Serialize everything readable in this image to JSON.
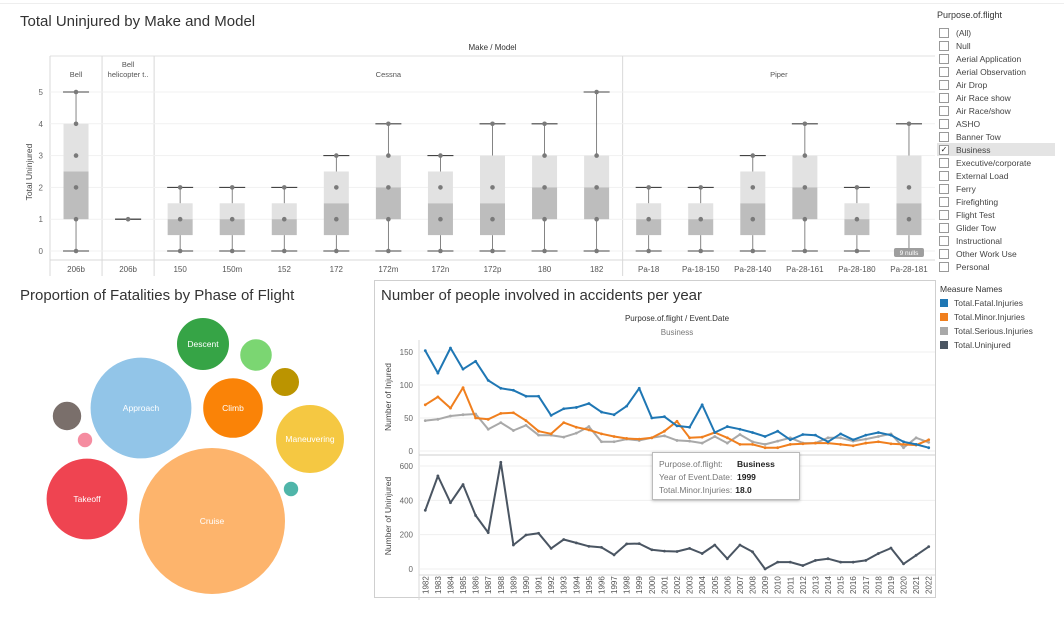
{
  "colors": {
    "fatal": "#1f77b4",
    "minor": "#f07f1e",
    "serious": "#a9a9a9",
    "uninjured": "#4a5562",
    "box_upper": "#e2e2e2",
    "box_lower": "#bdbdbd"
  },
  "boxplot": {
    "title": "Total Uninjured by Make and Model",
    "header": "Make / Model",
    "y_label": "Total Uninjured",
    "nulls_badge": "9 nulls",
    "makes": [
      {
        "label": "Bell",
        "count": 1
      },
      {
        "label": "Bell helicopter t..",
        "count": 1
      },
      {
        "label": "Cessna",
        "count": 9
      },
      {
        "label": "Piper",
        "count": 6
      }
    ]
  },
  "bubble": {
    "title": "Proportion of Fatalities by Phase of Flight",
    "bubbles": [
      {
        "label": "Cruise",
        "color": "#fdb46c",
        "size": 100
      },
      {
        "label": "Approach",
        "color": "#92c5e8",
        "size": 48
      },
      {
        "label": "Takeoff",
        "color": "#ef4451",
        "size": 31
      },
      {
        "label": "Maneuvering",
        "color": "#f5c842",
        "size": 22
      },
      {
        "label": "Climb",
        "color": "#fa8307",
        "size": 17
      },
      {
        "label": "Descent",
        "color": "#36a446",
        "size": 13
      },
      {
        "label": "",
        "color": "#7bd672",
        "size": 4.9
      },
      {
        "label": "",
        "color": "#bb9400",
        "size": 3.9
      },
      {
        "label": "",
        "color": "#7a6f6b",
        "size": 4.0
      },
      {
        "label": "",
        "color": "#f58ca0",
        "size": 1.1
      },
      {
        "label": "",
        "color": "#4fb5a9",
        "size": 1.1
      }
    ]
  },
  "line": {
    "title": "Number of people involved in accidents per year",
    "header": "Purpose.of.flight / Event.Date",
    "subheader": "Business",
    "top_ylabel": "Number of Injured",
    "bottom_ylabel": "Number of Uninjured"
  },
  "filter": {
    "title": "Purpose.of.flight",
    "items": [
      {
        "label": "(All)",
        "checked": false
      },
      {
        "label": "Null",
        "checked": false
      },
      {
        "label": "Aerial Application",
        "checked": false
      },
      {
        "label": "Aerial Observation",
        "checked": false
      },
      {
        "label": "Air Drop",
        "checked": false
      },
      {
        "label": "Air Race show",
        "checked": false
      },
      {
        "label": "Air Race/show",
        "checked": false
      },
      {
        "label": "ASHO",
        "checked": false
      },
      {
        "label": "Banner Tow",
        "checked": false
      },
      {
        "label": "Business",
        "checked": true
      },
      {
        "label": "Executive/corporate",
        "checked": false
      },
      {
        "label": "External Load",
        "checked": false
      },
      {
        "label": "Ferry",
        "checked": false
      },
      {
        "label": "Firefighting",
        "checked": false
      },
      {
        "label": "Flight Test",
        "checked": false
      },
      {
        "label": "Glider Tow",
        "checked": false
      },
      {
        "label": "Instructional",
        "checked": false
      },
      {
        "label": "Other Work Use",
        "checked": false
      },
      {
        "label": "Personal",
        "checked": false
      }
    ]
  },
  "legend": {
    "title": "Measure Names",
    "items": [
      {
        "label": "Total.Fatal.Injuries",
        "color": "#1f77b4"
      },
      {
        "label": "Total.Minor.Injuries",
        "color": "#f07f1e"
      },
      {
        "label": "Total.Serious.Injuries",
        "color": "#a9a9a9"
      },
      {
        "label": "Total.Uninjured",
        "color": "#4a5562"
      }
    ]
  },
  "tooltip": {
    "k1": "Purpose.of.flight:",
    "v1": "Business",
    "k2": "Year of Event.Date:",
    "v2": "1999",
    "k3": "Total.Minor.Injuries:",
    "v3": "18.0"
  },
  "chart_data": [
    {
      "type": "box",
      "title": "Total Uninjured by Make and Model",
      "ylabel": "Total Uninjured",
      "ylim": [
        0,
        5
      ],
      "yticks": [
        0,
        1,
        2,
        3,
        4,
        5
      ],
      "categories": [
        "206b",
        "206b",
        "150",
        "150m",
        "152",
        "172",
        "172m",
        "172n",
        "172p",
        "180",
        "182",
        "Pa-18",
        "Pa-18-150",
        "Pa-28-140",
        "Pa-28-161",
        "Pa-28-180",
        "Pa-28-181"
      ],
      "boxes": [
        {
          "min": 0,
          "q1": 1,
          "median": 2.5,
          "q3": 4,
          "max": 5,
          "points": [
            0,
            1,
            2,
            3,
            4,
            5
          ]
        },
        {
          "min": 1,
          "q1": 1,
          "median": 1,
          "q3": 1,
          "max": 1,
          "points": [
            1
          ]
        },
        {
          "min": 0,
          "q1": 0.5,
          "median": 1,
          "q3": 1.5,
          "max": 2,
          "points": [
            0,
            1,
            2
          ]
        },
        {
          "min": 0,
          "q1": 0.5,
          "median": 1,
          "q3": 1.5,
          "max": 2,
          "points": [
            0,
            1,
            2
          ]
        },
        {
          "min": 0,
          "q1": 0.5,
          "median": 1,
          "q3": 1.5,
          "max": 2,
          "points": [
            0,
            1,
            2
          ]
        },
        {
          "min": 0,
          "q1": 0.5,
          "median": 1.5,
          "q3": 2.5,
          "max": 3,
          "points": [
            0,
            1,
            2,
            3
          ]
        },
        {
          "min": 0,
          "q1": 1,
          "median": 2,
          "q3": 3,
          "max": 4,
          "points": [
            0,
            1,
            2,
            3,
            4
          ]
        },
        {
          "min": 0,
          "q1": 0.5,
          "median": 1.5,
          "q3": 2.5,
          "max": 3,
          "points": [
            0,
            1,
            2,
            3
          ]
        },
        {
          "min": 0,
          "q1": 0.5,
          "median": 1.5,
          "q3": 3,
          "max": 4,
          "points": [
            0,
            1,
            2,
            4
          ]
        },
        {
          "min": 0,
          "q1": 1,
          "median": 2,
          "q3": 3,
          "max": 4,
          "points": [
            0,
            1,
            2,
            3,
            4
          ]
        },
        {
          "min": 0,
          "q1": 1,
          "median": 2,
          "q3": 3,
          "max": 5,
          "points": [
            0,
            1,
            2,
            3,
            5
          ]
        },
        {
          "min": 0,
          "q1": 0.5,
          "median": 1,
          "q3": 1.5,
          "max": 2,
          "points": [
            0,
            1,
            2
          ]
        },
        {
          "min": 0,
          "q1": 0.5,
          "median": 1,
          "q3": 1.5,
          "max": 2,
          "points": [
            0,
            1,
            2
          ]
        },
        {
          "min": 0,
          "q1": 0.5,
          "median": 1.5,
          "q3": 2.5,
          "max": 3,
          "points": [
            0,
            1,
            2,
            3
          ]
        },
        {
          "min": 0,
          "q1": 1,
          "median": 2,
          "q3": 3,
          "max": 4,
          "points": [
            0,
            1,
            2,
            3,
            4
          ]
        },
        {
          "min": 0,
          "q1": 0.5,
          "median": 1,
          "q3": 1.5,
          "max": 2,
          "points": [
            0,
            1,
            2
          ]
        },
        {
          "min": 0,
          "q1": 0.5,
          "median": 1.5,
          "q3": 3,
          "max": 4,
          "points": [
            0,
            1,
            2,
            4
          ]
        }
      ]
    },
    {
      "type": "line",
      "title": "Number of people involved in accidents per year",
      "x": [
        1982,
        1983,
        1984,
        1985,
        1986,
        1987,
        1988,
        1989,
        1990,
        1991,
        1992,
        1993,
        1994,
        1995,
        1996,
        1997,
        1998,
        1999,
        2000,
        2001,
        2002,
        2003,
        2004,
        2005,
        2006,
        2007,
        2008,
        2009,
        2010,
        2011,
        2012,
        2013,
        2014,
        2015,
        2016,
        2017,
        2018,
        2019,
        2020,
        2021,
        2022
      ],
      "ylabel": "Number of Injured",
      "ylim": [
        0,
        165
      ],
      "yticks": [
        0,
        50,
        100,
        150
      ],
      "series": [
        {
          "name": "Total.Fatal.Injuries",
          "values": [
            152,
            118,
            156,
            124,
            136,
            107,
            95,
            92,
            83,
            83,
            54,
            64,
            66,
            72,
            59,
            55,
            68,
            95,
            50,
            52,
            38,
            36,
            70,
            28,
            37,
            33,
            28,
            22,
            30,
            17,
            25,
            24,
            14,
            26,
            17,
            24,
            28,
            24,
            14,
            10,
            5
          ]
        },
        {
          "name": "Total.Minor.Injuries",
          "values": [
            70,
            82,
            65,
            96,
            50,
            48,
            57,
            58,
            46,
            30,
            26,
            43,
            36,
            32,
            26,
            22,
            19,
            18,
            20,
            30,
            45,
            20,
            21,
            28,
            20,
            10,
            10,
            5,
            5,
            10,
            11,
            12,
            12,
            10,
            8,
            12,
            14,
            11,
            10,
            9,
            17
          ]
        },
        {
          "name": "Total.Serious.Injuries",
          "values": [
            46,
            48,
            53,
            55,
            56,
            33,
            43,
            31,
            39,
            24,
            24,
            21,
            27,
            37,
            14,
            14,
            18,
            16,
            20,
            23,
            16,
            15,
            12,
            22,
            12,
            25,
            14,
            10,
            15,
            20,
            12,
            12,
            20,
            20,
            15,
            18,
            22,
            26,
            5,
            20,
            13
          ]
        }
      ]
    },
    {
      "type": "line",
      "ylabel": "Number of Uninjured",
      "ylim": [
        0,
        650
      ],
      "yticks": [
        0,
        200,
        400,
        600
      ],
      "x": [
        1982,
        1983,
        1984,
        1985,
        1986,
        1987,
        1988,
        1989,
        1990,
        1991,
        1992,
        1993,
        1994,
        1995,
        1996,
        1997,
        1998,
        1999,
        2000,
        2001,
        2002,
        2003,
        2004,
        2005,
        2006,
        2007,
        2008,
        2009,
        2010,
        2011,
        2012,
        2013,
        2014,
        2015,
        2016,
        2017,
        2018,
        2019,
        2020,
        2021,
        2022
      ],
      "series": [
        {
          "name": "Total.Uninjured",
          "values": [
            342,
            542,
            386,
            492,
            312,
            212,
            622,
            140,
            198,
            208,
            120,
            172,
            152,
            132,
            126,
            82,
            146,
            148,
            112,
            104,
            102,
            120,
            90,
            140,
            60,
            140,
            100,
            0,
            40,
            40,
            20,
            50,
            60,
            40,
            40,
            50,
            90,
            122,
            30,
            80,
            130
          ]
        }
      ]
    }
  ]
}
